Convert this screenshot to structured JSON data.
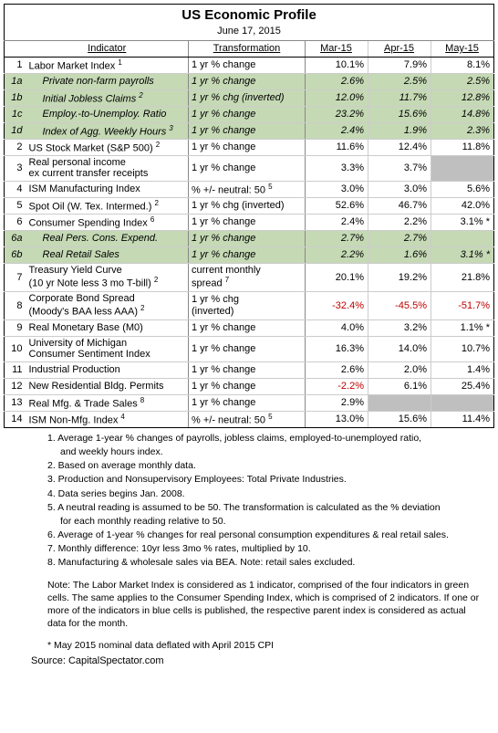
{
  "title": "US Economic Profile",
  "date": "June 17, 2015",
  "headers": {
    "indicator": "Indicator",
    "transformation": "Transformation",
    "mar": "Mar-15",
    "apr": "Apr-15",
    "may": "May-15"
  },
  "rows": [
    {
      "idx": "1",
      "ind": "Labor Market Index",
      "sup": "1",
      "trans": "1 yr % change",
      "mar": "10.1%",
      "apr": "7.9%",
      "may": "8.1%"
    },
    {
      "idx": "1a",
      "ind": "Private non-farm payrolls",
      "trans": "1 yr % change",
      "mar": "2.6%",
      "apr": "2.5%",
      "may": "2.5%",
      "green": true
    },
    {
      "idx": "1b",
      "ind": "Initial Jobless Claims",
      "sup": "2",
      "trans": "1 yr % chg (inverted)",
      "mar": "12.0%",
      "apr": "11.7%",
      "may": "12.8%",
      "green": true
    },
    {
      "idx": "1c",
      "ind": "Employ.-to-Unemploy. Ratio",
      "trans": "1 yr % change",
      "mar": "23.2%",
      "apr": "15.6%",
      "may": "14.8%",
      "green": true
    },
    {
      "idx": "1d",
      "ind": "Index of Agg. Weekly Hours",
      "sup": "3",
      "trans": "1 yr % change",
      "mar": "2.4%",
      "apr": "1.9%",
      "may": "2.3%",
      "green": true
    },
    {
      "idx": "2",
      "ind": "US Stock Market (S&P 500)",
      "sup": "2",
      "trans": "1 yr % change",
      "mar": "11.6%",
      "apr": "12.4%",
      "may": "11.8%"
    },
    {
      "idx": "3",
      "ind": "Real personal income\nex current transfer receipts",
      "trans": "1 yr % change",
      "mar": "3.3%",
      "apr": "3.7%",
      "may": "",
      "maygrey": true,
      "multi": true
    },
    {
      "idx": "4",
      "ind": "ISM Manufacturing Index",
      "trans": "% +/- neutral: 50",
      "tsup": "5",
      "mar": "3.0%",
      "apr": "3.0%",
      "may": "5.6%"
    },
    {
      "idx": "5",
      "ind": "Spot Oil (W. Tex. Intermed.)",
      "sup": "2",
      "trans": "1 yr % chg (inverted)",
      "mar": "52.6%",
      "apr": "46.7%",
      "may": "42.0%"
    },
    {
      "idx": "6",
      "ind": "Consumer Spending Index",
      "sup": "6",
      "trans": "1 yr % change",
      "mar": "2.4%",
      "apr": "2.2%",
      "may": "3.1% *"
    },
    {
      "idx": "6a",
      "ind": "Real Pers. Cons. Expend.",
      "trans": "1 yr % change",
      "mar": "2.7%",
      "apr": "2.7%",
      "may": "",
      "green": true
    },
    {
      "idx": "6b",
      "ind": "Real Retail Sales",
      "trans": "1 yr % change",
      "mar": "2.2%",
      "apr": "1.6%",
      "may": "3.1% *",
      "green": true
    },
    {
      "idx": "7",
      "ind": "Treasury Yield Curve\n(10 yr Note less 3 mo T-bill)",
      "sup": "2",
      "trans": "current monthly\nspread",
      "tsup": "7",
      "mar": "20.1%",
      "apr": "19.2%",
      "may": "21.8%",
      "multi": true
    },
    {
      "idx": "8",
      "ind": "Corporate Bond Spread\n(Moody's BAA less AAA)",
      "sup": "2",
      "trans": "1 yr % chg\n(inverted)",
      "mar": "-32.4%",
      "apr": "-45.5%",
      "may": "-51.7%",
      "multi": true,
      "neg": true
    },
    {
      "idx": "9",
      "ind": "Real Monetary Base (M0)",
      "trans": "1 yr % change",
      "mar": "4.0%",
      "apr": "3.2%",
      "may": "1.1% *"
    },
    {
      "idx": "10",
      "ind": "University of Michigan\nConsumer Sentiment Index",
      "trans": "1 yr % change",
      "mar": "16.3%",
      "apr": "14.0%",
      "may": "10.7%",
      "multi": true
    },
    {
      "idx": "11",
      "ind": "Industrial Production",
      "trans": "1 yr % change",
      "mar": "2.6%",
      "apr": "2.0%",
      "may": "1.4%"
    },
    {
      "idx": "12",
      "ind": "New Residential Bldg. Permits",
      "trans": "1 yr % change",
      "mar": "-2.2%",
      "apr": "6.1%",
      "may": "25.4%",
      "marneg": true
    },
    {
      "idx": "13",
      "ind": "Real Mfg. & Trade Sales",
      "sup": "8",
      "trans": "1 yr % change",
      "mar": "2.9%",
      "apr": "",
      "may": "",
      "aprgrey": true,
      "maygrey": true
    },
    {
      "idx": "14",
      "ind": "ISM Non-Mfg. Index",
      "sup": "4",
      "trans": "% +/- neutral: 50",
      "tsup": "5",
      "mar": "13.0%",
      "apr": "15.6%",
      "may": "11.4%",
      "last": true
    }
  ],
  "footnotes": [
    "1. Average 1-year % changes of payrolls, jobless claims, employed-to-unemployed ratio,",
    "    and weekly hours index.",
    "2. Based on average monthly data.",
    "3. Production and Nonsupervisory Employees: Total Private Industries.",
    "4. Data series begins Jan. 2008.",
    "5. A neutral reading is assumed to be 50. The transformation is calculated as the % deviation",
    "    for each monthly reading relative to 50.",
    "6. Average of 1-year % changes for real personal consumption expenditures & real retail sales.",
    "7. Monthly difference: 10yr less 3mo % rates, multiplied by 10.",
    "8. Manufacturing & wholesale sales via BEA. Note: retail sales excluded."
  ],
  "note": "Note: The Labor Market Index is considered as 1 indicator, comprised of the four indicators in green cells. The same applies to the Consumer Spending Index, which is comprised of 2 indicators. If one or more of the indicators in blue cells is published, the respective parent index is considered as actual data for the month.",
  "asterisk": "* May 2015 nominal data deflated with April 2015 CPI",
  "source": "Source: CapitalSpectator.com"
}
